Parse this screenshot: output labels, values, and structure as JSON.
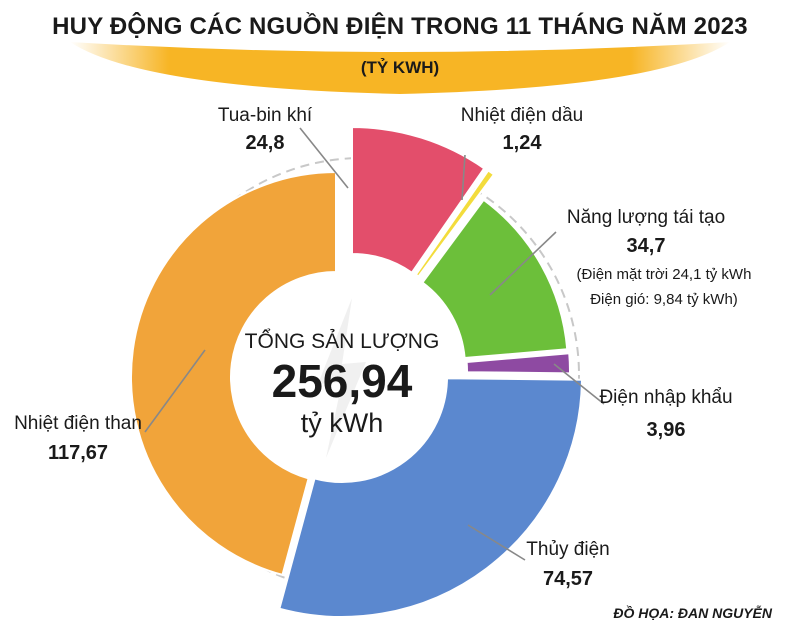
{
  "title": "HUY ĐỘNG CÁC NGUỒN ĐIỆN TRONG 11 THÁNG NĂM 2023",
  "unit": "(TỶ KWH)",
  "center": {
    "label": "TỔNG SẢN LƯỢNG",
    "value": "256,94",
    "unit": "tỷ kWh"
  },
  "credit": "ĐỒ HỌA: ĐAN NGUYỄN",
  "colors": {
    "gas": "#e34e6b",
    "oil": "#f3dc3c",
    "renewable": "#6cbf3a",
    "import": "#8e4aa2",
    "hydro": "#5b88cf",
    "coal": "#f1a43a"
  },
  "chart_data": {
    "type": "pie",
    "title": "HUY ĐỘNG CÁC NGUỒN ĐIỆN TRONG 11 THÁNG NĂM 2023",
    "unit": "(TỶ KWH)",
    "total": 256.94,
    "slices": [
      {
        "key": "gas",
        "label": "Tua-bin khí",
        "value": 24.8,
        "value_label": "24,8"
      },
      {
        "key": "oil",
        "label": "Nhiệt điện dầu",
        "value": 1.24,
        "value_label": "1,24"
      },
      {
        "key": "renewable",
        "label": "Năng lượng tái tạo",
        "value": 34.7,
        "value_label": "34,7",
        "note1": "(Điện mặt trời 24,1 tỷ kWh",
        "note2": "Điện gió: 9,84 tỷ kWh)"
      },
      {
        "key": "import",
        "label": "Điện nhập khẩu",
        "value": 3.96,
        "value_label": "3,96"
      },
      {
        "key": "hydro",
        "label": "Thủy điện",
        "value": 74.57,
        "value_label": "74,57"
      },
      {
        "key": "coal",
        "label": "Nhiệt điện than",
        "value": 117.67,
        "value_label": "117,67"
      }
    ]
  }
}
